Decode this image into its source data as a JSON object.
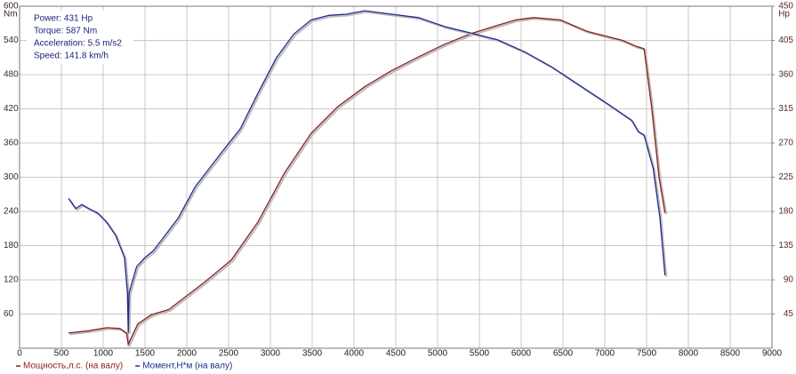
{
  "chart_data": {
    "type": "line",
    "annotations": [
      "Power: 431 Hp",
      "Torque: 587 Nm",
      "Acceleration: 5.5 m/s2",
      "Speed: 141.8 km/h"
    ],
    "ylabel": "Nm",
    "y2label": "Hp",
    "xlim": [
      0,
      9000
    ],
    "xticks": [
      0,
      500,
      1000,
      1500,
      2000,
      2500,
      3000,
      3500,
      4000,
      4500,
      5000,
      5500,
      6000,
      6500,
      7000,
      7500,
      8000,
      8500,
      9000
    ],
    "ylim": [
      0,
      600
    ],
    "yticks": [
      60,
      120,
      180,
      240,
      300,
      360,
      420,
      480,
      540,
      600
    ],
    "y2lim": [
      0,
      450
    ],
    "y2ticks": [
      45,
      90,
      135,
      180,
      225,
      270,
      315,
      360,
      405,
      450
    ],
    "grid": true,
    "series": [
      {
        "name": "Мощность,л.с. (на валу)",
        "color": "#8b1c1c",
        "axis": "y2",
        "x": [
          585,
          830,
          1043,
          1200,
          1280,
          1300,
          1415,
          1574,
          1787,
          2000,
          2213,
          2532,
          2851,
          3170,
          3489,
          3809,
          4128,
          4447,
          4766,
          5085,
          5404,
          5723,
          5936,
          6149,
          6468,
          6787,
          7213,
          7380,
          7470,
          7560,
          7650,
          7720
        ],
        "values": [
          20,
          23,
          27,
          26,
          20,
          5,
          32,
          44,
          51,
          69,
          87,
          116,
          166,
          231,
          283,
          318,
          344,
          365,
          383,
          400,
          414,
          425,
          432,
          435,
          432,
          417,
          405,
          397,
          394,
          318,
          224,
          178
        ]
      },
      {
        "name": "Момент,Н*м (на валу)",
        "color": "#1f2a8a",
        "x": [
          585,
          670,
          745,
          830,
          936,
          1043,
          1149,
          1255,
          1290,
          1300,
          1310,
          1400,
          1500,
          1600,
          1700,
          1900,
          2100,
          2430,
          2640,
          2850,
          3070,
          3280,
          3490,
          3700,
          3910,
          4130,
          4450,
          4770,
          5090,
          5400,
          5720,
          6040,
          6360,
          6680,
          7000,
          7320,
          7400,
          7470,
          7580,
          7660,
          7720
        ],
        "values": [
          263,
          245,
          252,
          245,
          237,
          221,
          198,
          159,
          97,
          27,
          97,
          143,
          159,
          171,
          190,
          229,
          283,
          346,
          385,
          447,
          509,
          551,
          576,
          584,
          586,
          592,
          586,
          580,
          564,
          553,
          541,
          520,
          494,
          463,
          432,
          400,
          380,
          374,
          315,
          229,
          128
        ]
      }
    ]
  }
}
